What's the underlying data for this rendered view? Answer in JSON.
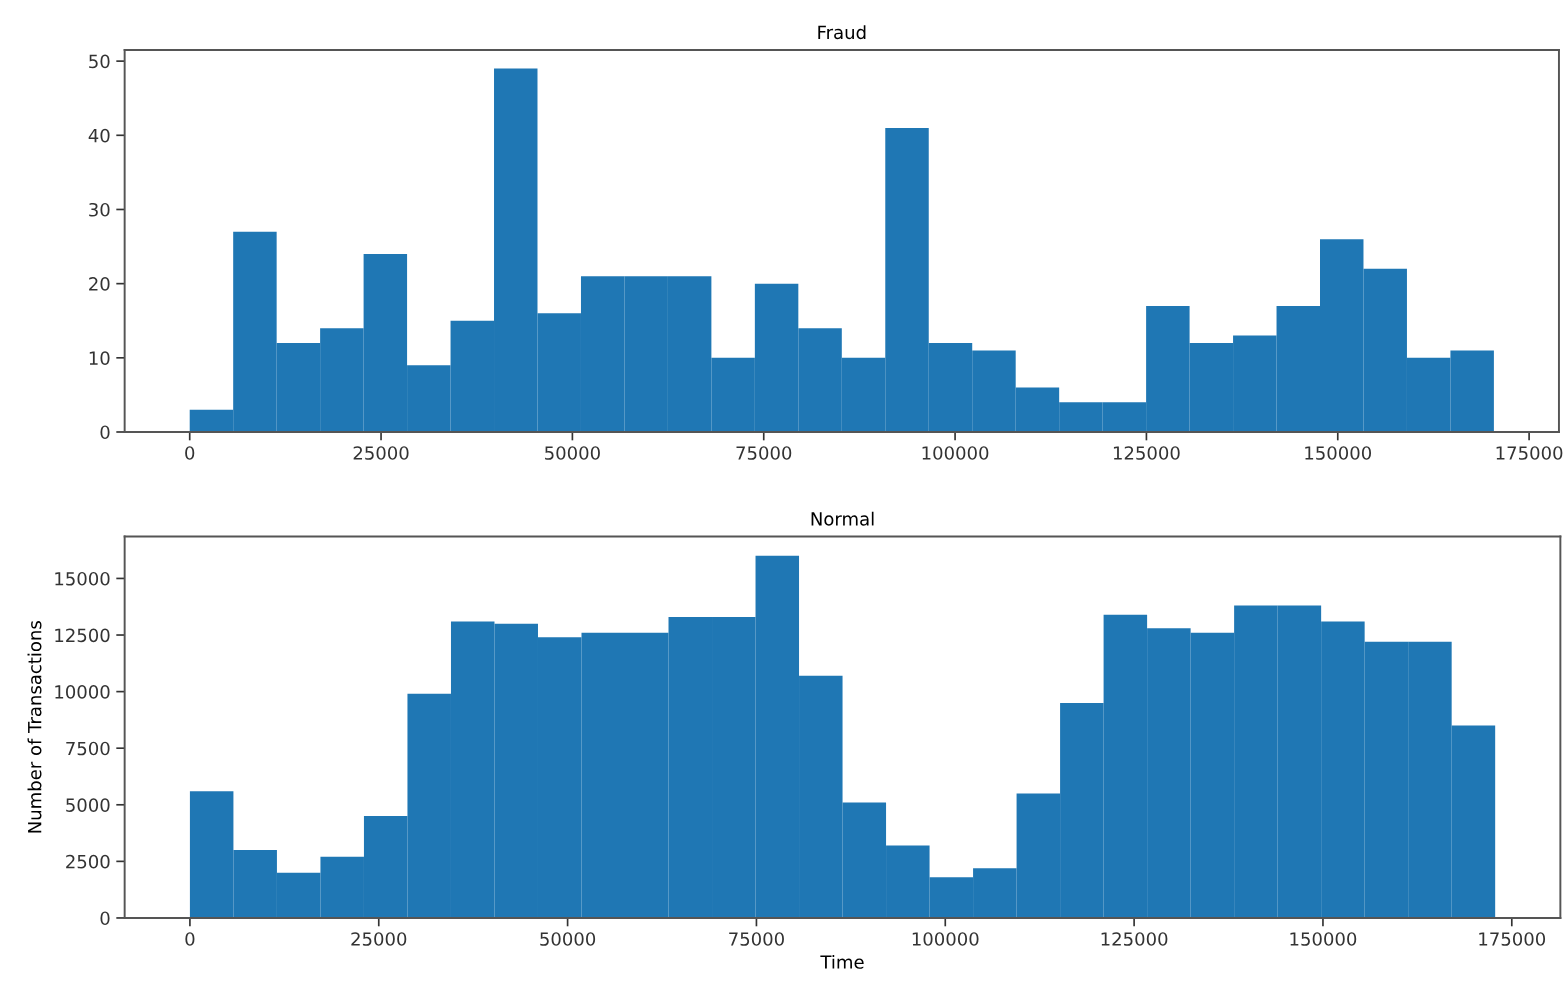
{
  "chart_data": [
    {
      "type": "histogram",
      "title": "Fraud",
      "color": "#1f77b4",
      "bins": [
        0,
        5680,
        11360,
        17040,
        22720,
        28400,
        34080,
        39760,
        45440,
        51120,
        56800,
        62480,
        68160,
        73840,
        79520,
        85200,
        90880,
        96560,
        102240,
        107920,
        113600,
        119280,
        124960,
        130640,
        136320,
        142000,
        147680,
        153360,
        159040,
        164720,
        170400
      ],
      "values": [
        3,
        27,
        12,
        14,
        24,
        9,
        15,
        49,
        16,
        21,
        21,
        21,
        10,
        20,
        14,
        10,
        41,
        12,
        11,
        6,
        4,
        4,
        17,
        12,
        13,
        17,
        26,
        22,
        10,
        11
      ],
      "xlim": [
        -8500,
        178900
      ],
      "xticks": [
        0,
        25000,
        50000,
        75000,
        100000,
        125000,
        150000,
        175000
      ],
      "ylim": [
        0,
        51.5
      ],
      "yticks": [
        0,
        10,
        20,
        30,
        40,
        50
      ],
      "grid": false
    },
    {
      "type": "histogram",
      "title": "Normal",
      "xlabel": "Time",
      "ylabel": "Number of Transactions",
      "color": "#1f77b4",
      "bins": [
        0,
        5760,
        11520,
        17280,
        23040,
        28800,
        34560,
        40320,
        46080,
        51840,
        57600,
        63360,
        69120,
        74880,
        80640,
        86400,
        92160,
        97920,
        103680,
        109440,
        115200,
        120960,
        126720,
        132480,
        138240,
        144000,
        149760,
        155520,
        161280,
        167040,
        172800
      ],
      "values": [
        5600,
        3000,
        2000,
        2700,
        4500,
        9900,
        13100,
        13000,
        12400,
        12600,
        12600,
        13300,
        13300,
        16000,
        10700,
        5100,
        3200,
        1800,
        2200,
        5500,
        9500,
        13400,
        12800,
        12600,
        13800,
        13800,
        13100,
        12200,
        12200,
        8500
      ],
      "xlim": [
        -8640,
        181430
      ],
      "xticks": [
        0,
        25000,
        50000,
        75000,
        100000,
        125000,
        150000,
        175000
      ],
      "ylim": [
        0,
        16850
      ],
      "yticks": [
        0,
        2500,
        5000,
        7500,
        10000,
        12500,
        15000
      ],
      "grid": false
    }
  ]
}
